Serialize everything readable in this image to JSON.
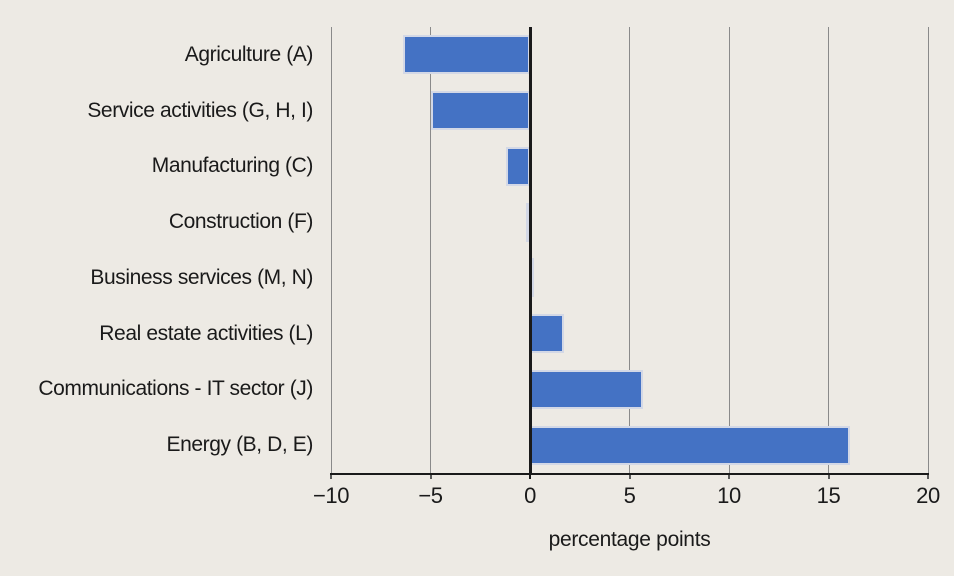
{
  "chart_data": {
    "type": "bar",
    "orientation": "horizontal",
    "title": "",
    "categories": [
      "Agriculture (A)",
      "Service activities (G, H, I)",
      "Manufacturing (C)",
      "Construction (F)",
      "Business services (M, N)",
      "Real estate activities (L)",
      "Communications - IT sector (J)",
      "Energy (B, D, E)"
    ],
    "values": [
      -6.4,
      -5.0,
      -1.2,
      -0.2,
      0.1,
      1.7,
      5.7,
      16.1
    ],
    "xlabel": "percentage points",
    "ylabel": "",
    "xlim": [
      -10,
      20
    ],
    "xticks": [
      -10,
      -5,
      0,
      5,
      10,
      15,
      20
    ],
    "xtick_labels": [
      "−10",
      "−5",
      "0",
      "5",
      "10",
      "15",
      "20"
    ],
    "grid": true,
    "legend": "none",
    "colors": {
      "background": "#EDEAE4",
      "bar_fill": "#4472C4",
      "bar_border": "#D3D8E6",
      "gridline": "#8A8A8A",
      "zero_line": "#1A1A1A",
      "axis_line": "#1A1A1A",
      "tick_stub": "#5A5A5A",
      "text": "#1A1A1A"
    }
  }
}
